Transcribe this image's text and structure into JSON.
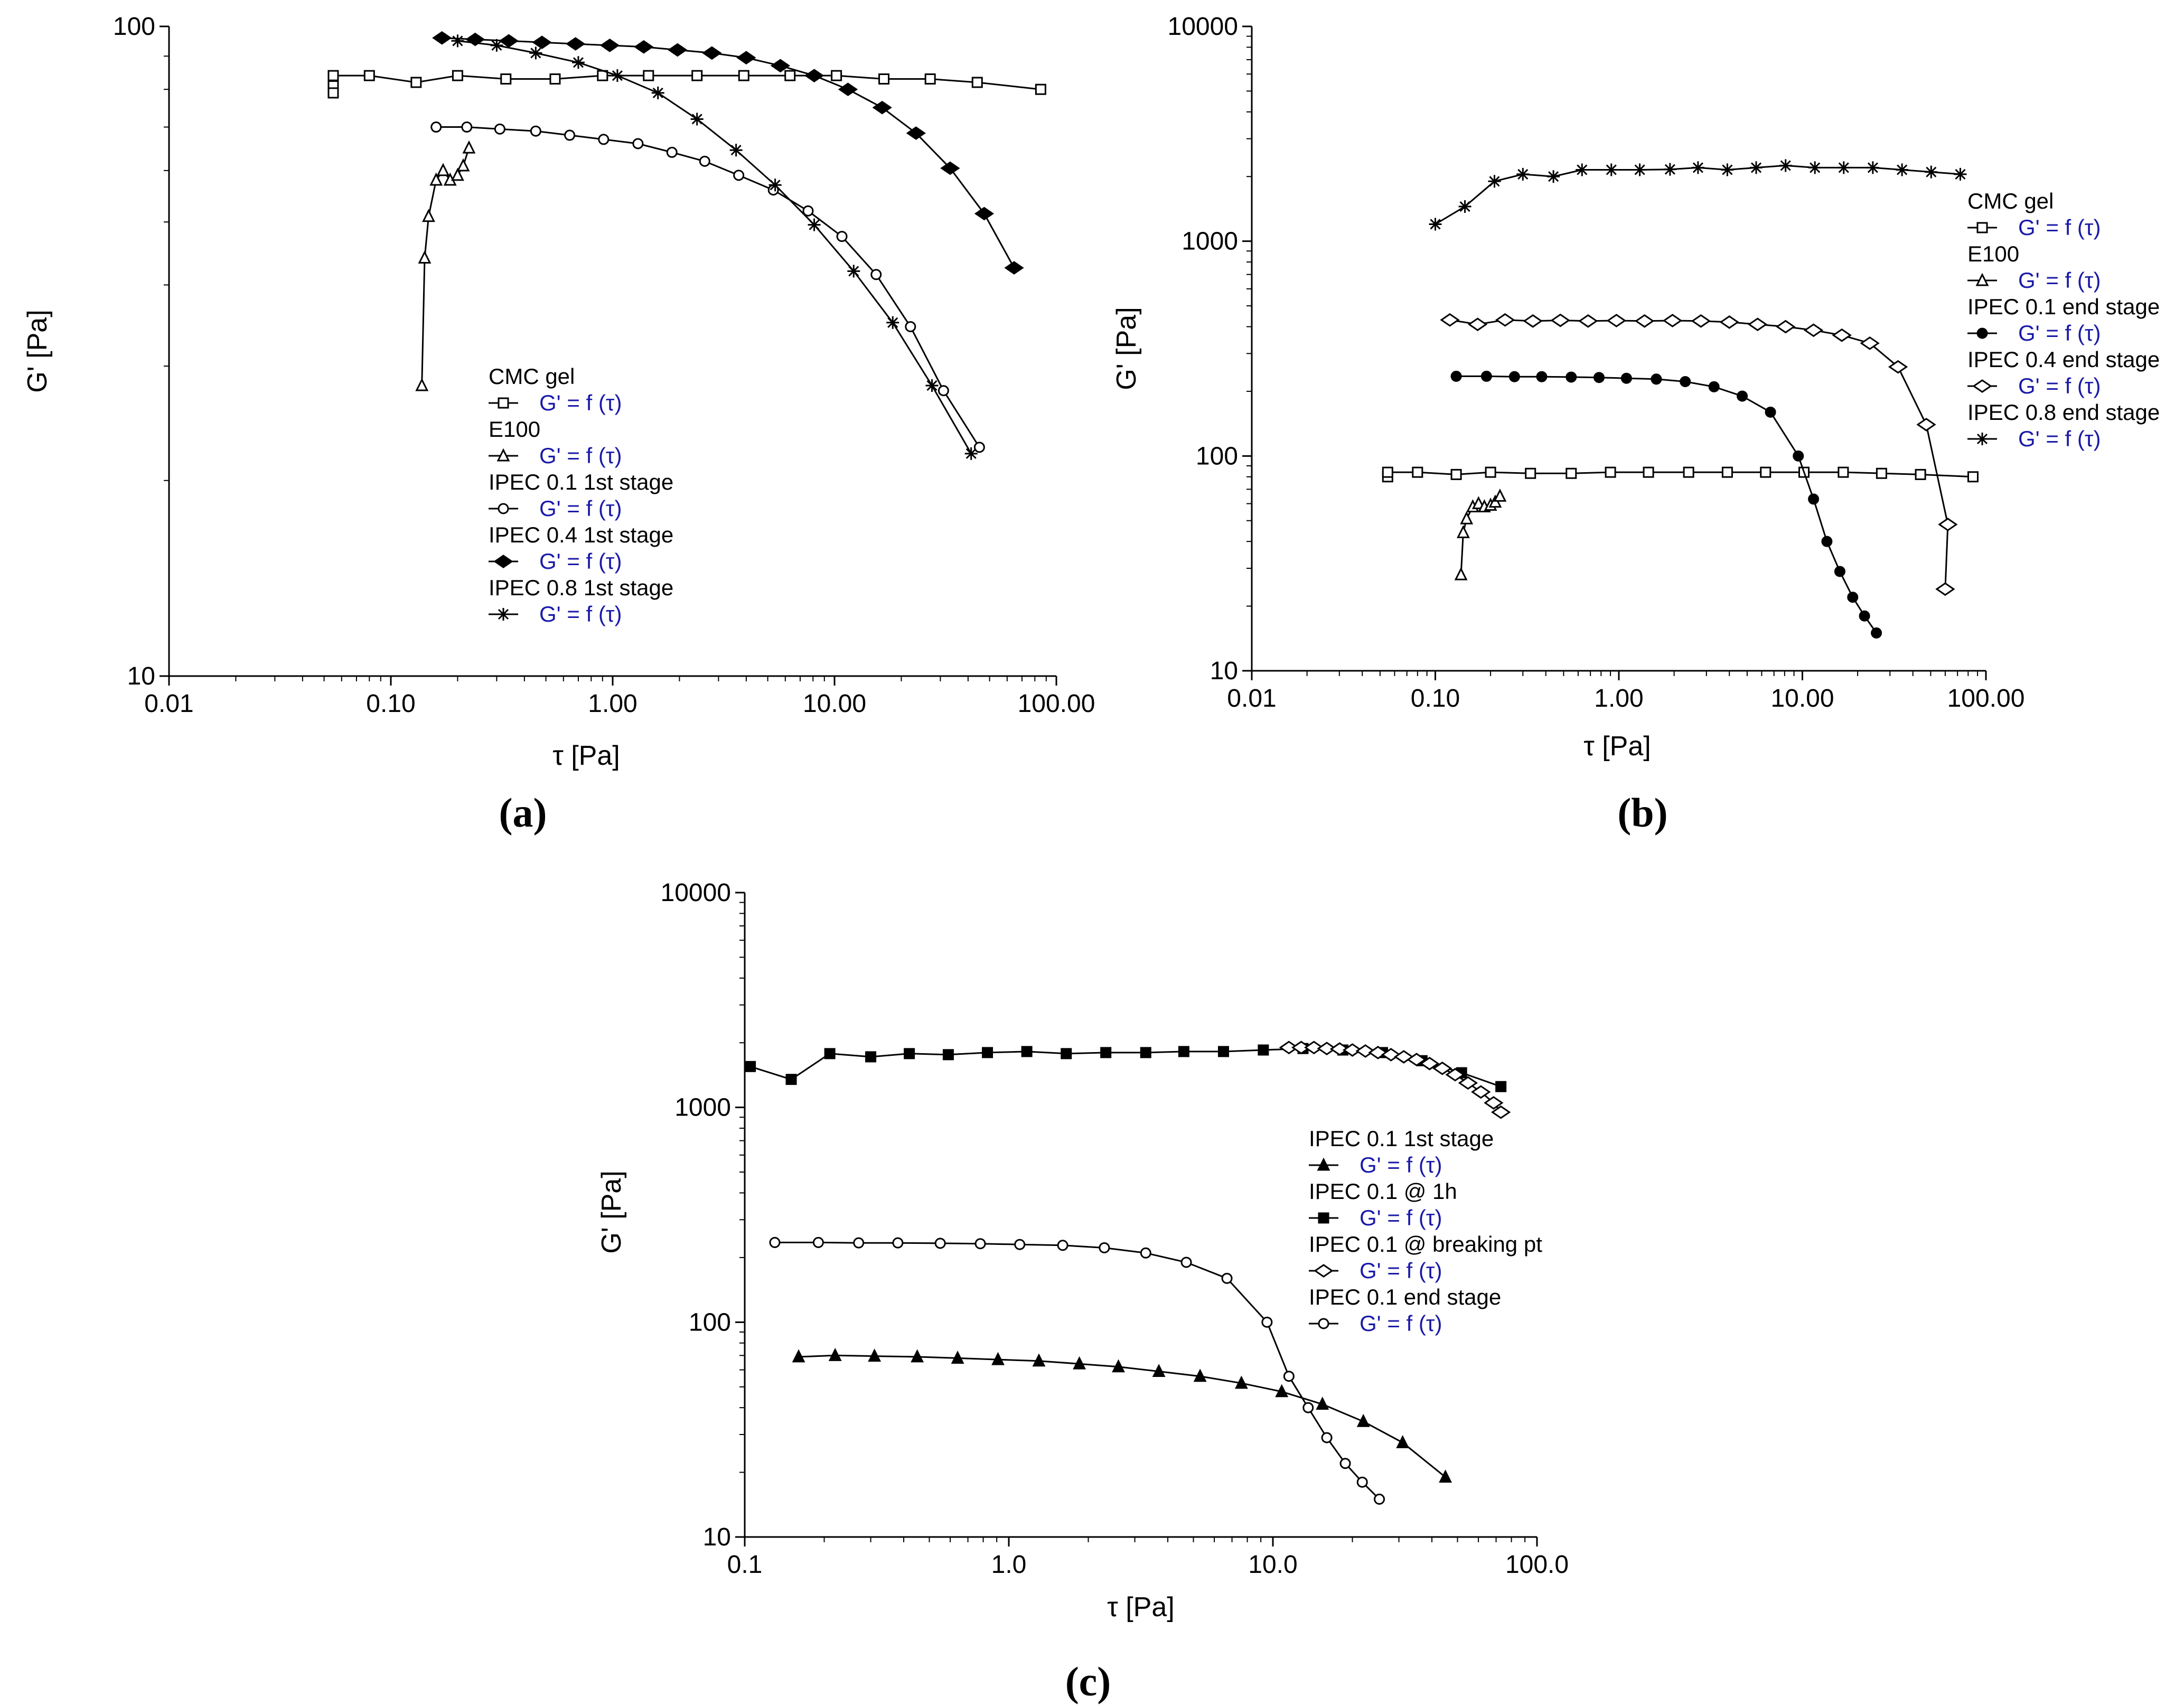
{
  "chart_data": [
    {
      "id": "a",
      "type": "line",
      "caption": "(a)",
      "xlabel": "τ  [Pa]",
      "ylabel": "G'  [Pa]",
      "xscale": "log",
      "yscale": "log",
      "xlim": [
        0.01,
        100
      ],
      "ylim": [
        10,
        100
      ],
      "xticks": [
        "0.01",
        "0.10",
        "1.00",
        "10.00",
        "100.00"
      ],
      "yticks": [
        "10",
        "100"
      ],
      "legend_placement": "center",
      "series": [
        {
          "name": "CMC gel",
          "fn": "G' = f (τ)",
          "marker": "square-open",
          "x": [
            0.055,
            0.055,
            0.055,
            0.08,
            0.13,
            0.2,
            0.33,
            0.55,
            0.9,
            1.45,
            2.4,
            3.9,
            6.3,
            10.2,
            16.7,
            27,
            44,
            85
          ],
          "y": [
            81,
            79,
            84,
            84,
            82,
            84,
            83,
            83,
            84,
            84,
            84,
            84,
            84,
            84,
            83,
            83,
            82,
            80
          ]
        },
        {
          "name": "E100",
          "fn": "G' = f (τ)",
          "marker": "triangle-open",
          "x": [
            0.138,
            0.142,
            0.148,
            0.16,
            0.172,
            0.185,
            0.2,
            0.212,
            0.225
          ],
          "y": [
            28,
            44,
            51,
            58,
            60,
            58,
            59,
            61,
            65
          ]
        },
        {
          "name": "IPEC 0.1 1st stage",
          "fn": "G' = f (τ)",
          "marker": "circle-open",
          "x": [
            0.16,
            0.22,
            0.31,
            0.45,
            0.64,
            0.91,
            1.3,
            1.85,
            2.6,
            3.7,
            5.3,
            7.6,
            10.8,
            15.4,
            22,
            31,
            45
          ],
          "y": [
            70,
            70,
            69.5,
            69,
            68,
            67,
            66,
            64,
            62,
            59,
            56,
            52,
            47.5,
            41.5,
            34.5,
            27.5,
            22.5
          ]
        },
        {
          "name": "IPEC 0.4 1st stage",
          "fn": "G' = f (τ)",
          "marker": "diamond-filled",
          "x": [
            0.17,
            0.24,
            0.34,
            0.48,
            0.68,
            0.97,
            1.38,
            1.96,
            2.8,
            4.0,
            5.7,
            8.1,
            11.5,
            16.4,
            23.3,
            33.2,
            47.3,
            64.5
          ],
          "y": [
            96,
            95.5,
            95,
            94.5,
            94,
            93.5,
            93,
            92,
            91,
            89.5,
            87,
            84,
            80,
            75,
            68.5,
            60.5,
            51.5,
            42.5
          ]
        },
        {
          "name": "IPEC 0.8 1st stage",
          "fn": "G' = f (τ)",
          "marker": "star",
          "x": [
            0.2,
            0.3,
            0.45,
            0.7,
            1.05,
            1.6,
            2.4,
            3.6,
            5.4,
            8.1,
            12.2,
            18.3,
            27.5,
            41.3
          ],
          "y": [
            95,
            93.5,
            91,
            88,
            84,
            79,
            72,
            64.5,
            57,
            49.5,
            42,
            35,
            28,
            22
          ]
        }
      ]
    },
    {
      "id": "b",
      "type": "line",
      "caption": "(b)",
      "xlabel": "τ  [Pa]",
      "ylabel": "G'  [Pa]",
      "xscale": "log",
      "yscale": "log",
      "xlim": [
        0.01,
        100
      ],
      "ylim": [
        10,
        10000
      ],
      "xticks": [
        "0.01",
        "0.10",
        "1.00",
        "10.00",
        "100.00"
      ],
      "yticks": [
        "10",
        "100",
        "1000",
        "10000"
      ],
      "legend_placement": "right",
      "series": [
        {
          "name": "CMC gel",
          "fn": "G' = f (τ)",
          "marker": "square-open",
          "x": [
            0.055,
            0.055,
            0.08,
            0.13,
            0.2,
            0.33,
            0.55,
            0.9,
            1.45,
            2.4,
            3.9,
            6.3,
            10.2,
            16.7,
            27,
            44,
            85
          ],
          "y": [
            80,
            84,
            84,
            82,
            84,
            83,
            83,
            84,
            84,
            84,
            84,
            84,
            84,
            84,
            83,
            82,
            80
          ]
        },
        {
          "name": "E100",
          "fn": "G' = f (τ)",
          "marker": "triangle-open",
          "x": [
            0.138,
            0.142,
            0.148,
            0.16,
            0.172,
            0.185,
            0.2,
            0.212,
            0.225
          ],
          "y": [
            28,
            44,
            51,
            58,
            60,
            58,
            59,
            61,
            65
          ]
        },
        {
          "name": "IPEC 0.1 end stage",
          "fn": "G' = f (τ)",
          "marker": "circle-filled",
          "x": [
            0.13,
            0.19,
            0.27,
            0.38,
            0.55,
            0.78,
            1.1,
            1.6,
            2.3,
            3.3,
            4.7,
            6.7,
            9.5,
            11.5,
            13.6,
            16,
            18.8,
            21.8,
            25.3
          ],
          "y": [
            235,
            235,
            234,
            234,
            233,
            232,
            230,
            228,
            222,
            210,
            190,
            160,
            100,
            63,
            40,
            29,
            22,
            18,
            15
          ]
        },
        {
          "name": "IPEC 0.4 end stage",
          "fn": "G' = f (τ)",
          "marker": "diamond-open",
          "x": [
            0.12,
            0.17,
            0.24,
            0.34,
            0.48,
            0.68,
            0.97,
            1.38,
            1.96,
            2.8,
            4.0,
            5.7,
            8.1,
            11.5,
            16.4,
            23.3,
            33.2,
            47.3,
            62,
            60
          ],
          "y": [
            430,
            410,
            430,
            425,
            428,
            425,
            427,
            425,
            427,
            425,
            420,
            410,
            400,
            385,
            365,
            335,
            260,
            140,
            48,
            24
          ]
        },
        {
          "name": "IPEC 0.8 end stage",
          "fn": "G' = f (τ)",
          "marker": "star",
          "x": [
            0.1,
            0.145,
            0.21,
            0.3,
            0.44,
            0.63,
            0.91,
            1.3,
            1.9,
            2.7,
            3.9,
            5.6,
            8.1,
            11.7,
            16.8,
            24.2,
            34.9,
            50.3,
            72.5
          ],
          "y": [
            1200,
            1450,
            1900,
            2050,
            2000,
            2150,
            2150,
            2150,
            2160,
            2200,
            2150,
            2200,
            2250,
            2200,
            2200,
            2200,
            2150,
            2100,
            2050
          ]
        }
      ]
    },
    {
      "id": "c",
      "type": "line",
      "caption": "(c)",
      "xlabel": "τ  [Pa]",
      "ylabel": "G'  [Pa]",
      "xscale": "log",
      "yscale": "log",
      "xlim": [
        0.1,
        100
      ],
      "ylim": [
        10,
        10000
      ],
      "xticks": [
        "0.1",
        "1.0",
        "10.0",
        "100.0"
      ],
      "yticks": [
        "10",
        "100",
        "1000",
        "10000"
      ],
      "legend_placement": "right",
      "series": [
        {
          "name": "IPEC 0.1 1st stage",
          "fn": "G' = f (τ)",
          "marker": "triangle-filled",
          "x": [
            0.16,
            0.22,
            0.31,
            0.45,
            0.64,
            0.91,
            1.3,
            1.85,
            2.6,
            3.7,
            5.3,
            7.6,
            10.8,
            15.4,
            22,
            31,
            45
          ],
          "y": [
            69,
            70,
            69.5,
            69,
            68,
            67,
            66,
            64,
            62,
            59,
            56,
            52,
            47.5,
            41.5,
            34.5,
            27.5,
            19
          ]
        },
        {
          "name": "IPEC 0.1 @ 1h",
          "fn": "G' = f (τ)",
          "marker": "square-filled",
          "x": [
            0.105,
            0.15,
            0.21,
            0.3,
            0.42,
            0.59,
            0.83,
            1.17,
            1.65,
            2.33,
            3.3,
            4.6,
            6.5,
            9.2,
            13,
            18.4,
            26,
            36.7,
            51.8,
            73
          ],
          "y": [
            1550,
            1350,
            1780,
            1720,
            1780,
            1760,
            1800,
            1820,
            1780,
            1800,
            1800,
            1820,
            1820,
            1850,
            1880,
            1850,
            1800,
            1650,
            1450,
            1250
          ]
        },
        {
          "name": "IPEC 0.1 @ breaking pt",
          "fn": "G' = f (τ)",
          "marker": "diamond-open",
          "x": [
            11.5,
            12.8,
            14.3,
            16,
            17.9,
            20,
            22.4,
            25,
            28,
            31.3,
            35,
            39.2,
            43.8,
            49,
            54.8,
            61.3,
            68.5,
            73
          ],
          "y": [
            1900,
            1900,
            1900,
            1880,
            1870,
            1850,
            1830,
            1800,
            1760,
            1720,
            1670,
            1600,
            1520,
            1420,
            1300,
            1180,
            1050,
            950
          ]
        },
        {
          "name": "IPEC 0.1 end stage",
          "fn": "G' = f (τ)",
          "marker": "circle-open",
          "x": [
            0.13,
            0.19,
            0.27,
            0.38,
            0.55,
            0.78,
            1.1,
            1.6,
            2.3,
            3.3,
            4.7,
            6.7,
            9.5,
            11.5,
            13.6,
            16,
            18.8,
            21.8,
            25.3
          ],
          "y": [
            235,
            235,
            234,
            234,
            233,
            232,
            230,
            228,
            222,
            210,
            190,
            160,
            100,
            56,
            40,
            29,
            22,
            18,
            15
          ]
        }
      ]
    }
  ]
}
